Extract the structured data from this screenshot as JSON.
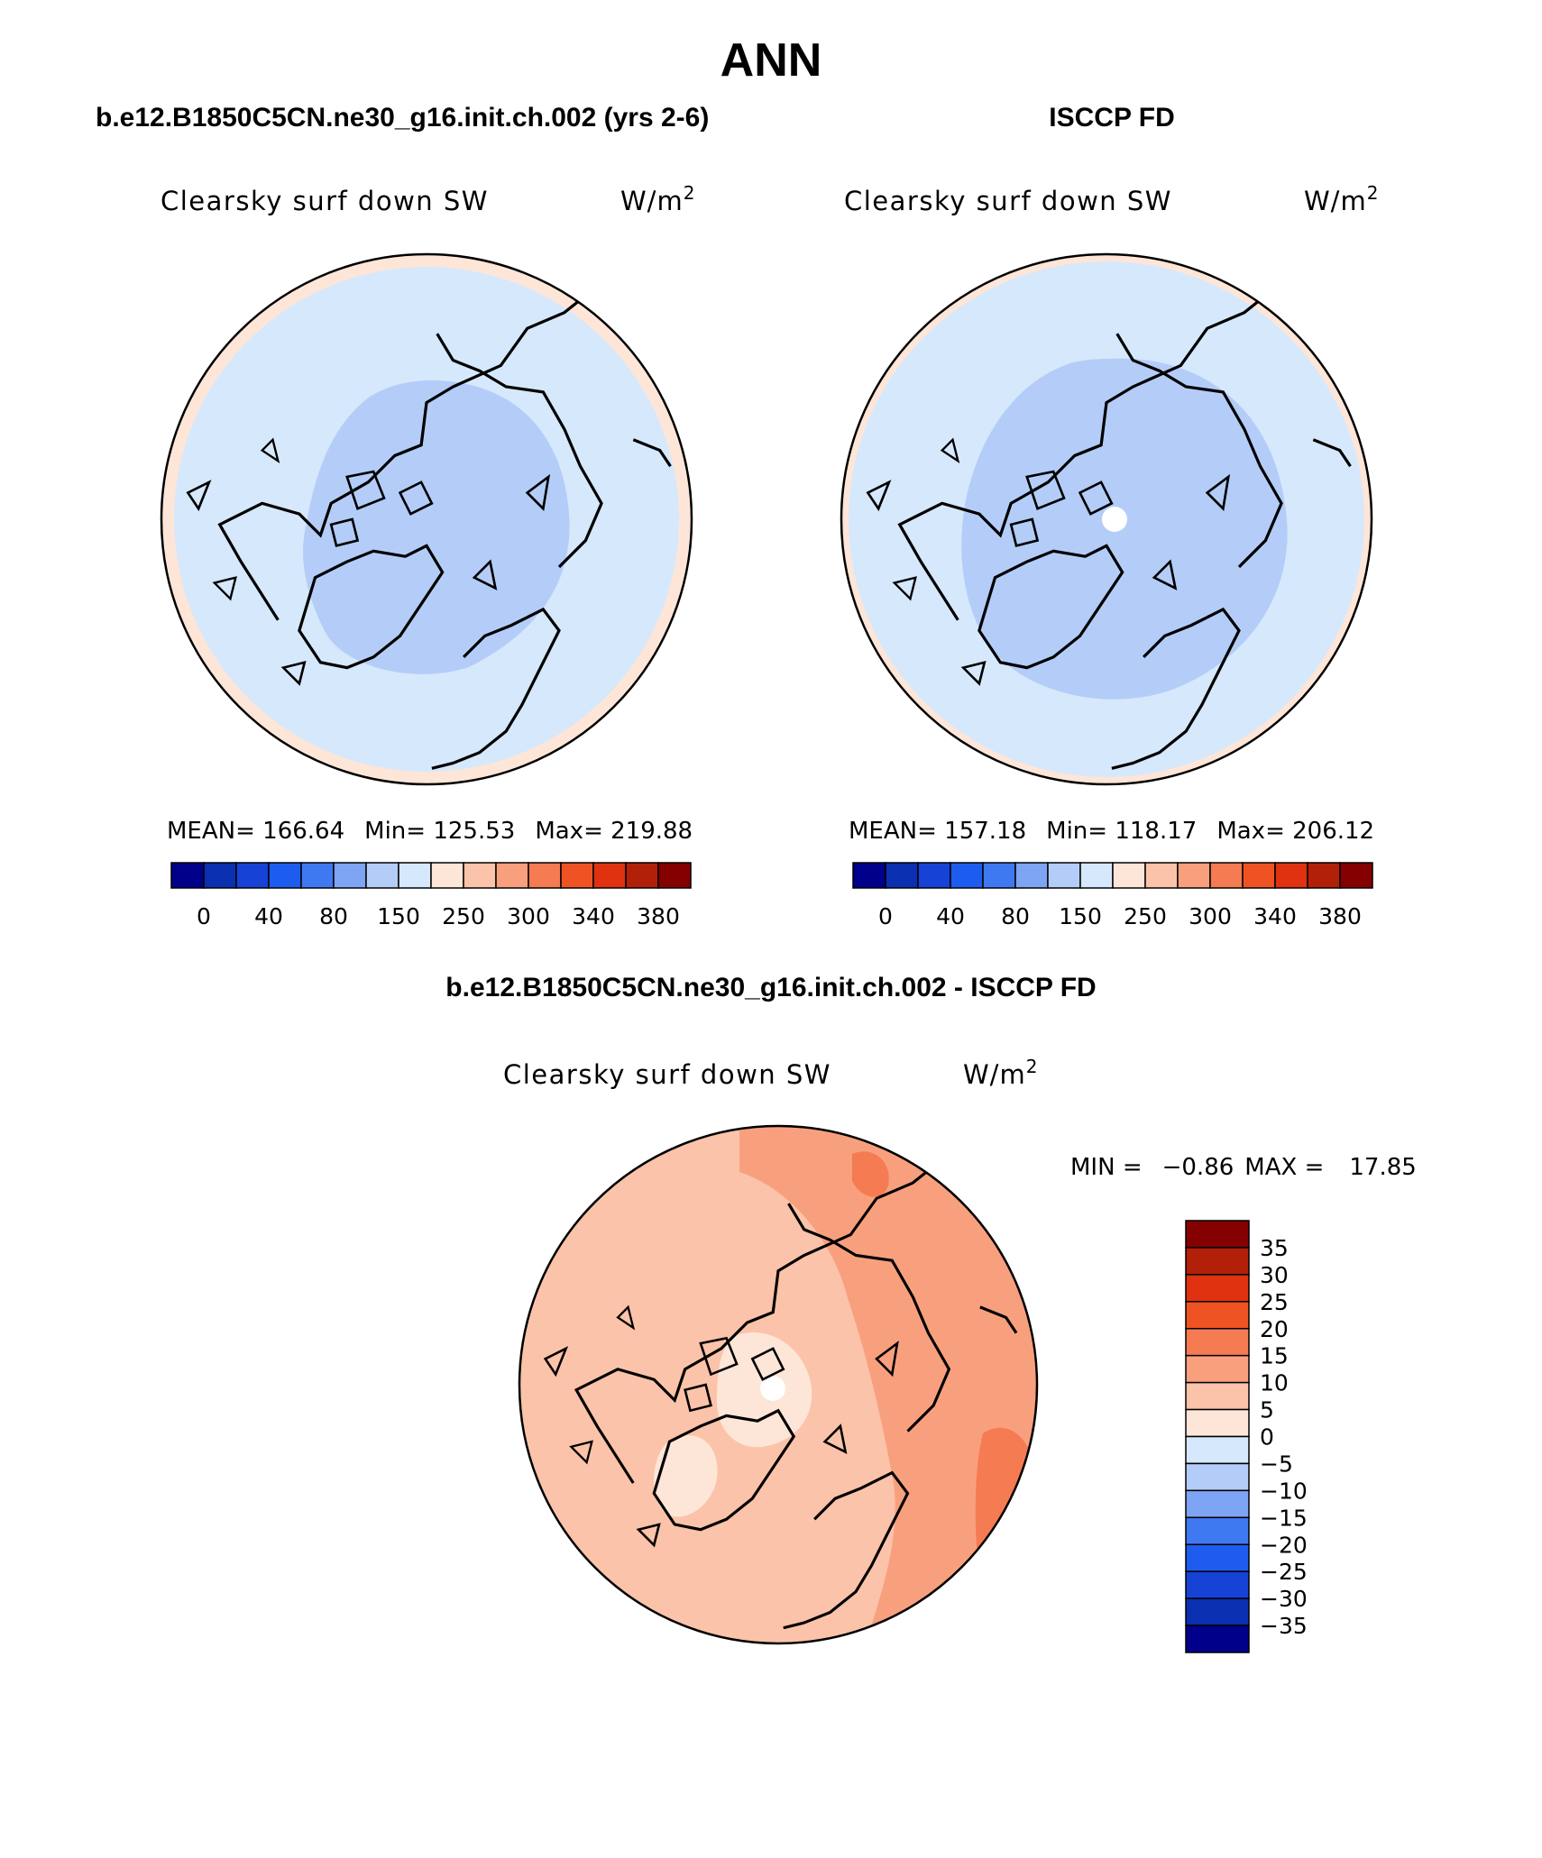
{
  "page": {
    "title": "ANN"
  },
  "panels": [
    {
      "id": "model",
      "header": "b.e12.B1850C5CN.ne30_g16.init.ch.002 (yrs 2-6)",
      "variable": "Clearsky surf down SW",
      "units_base": "W/m",
      "units_exp": "2",
      "stats": {
        "mean_label": "MEAN=",
        "mean": "166.64",
        "min_label": "Min=",
        "min": "125.53",
        "max_label": "Max=",
        "max": "219.88"
      },
      "colors": {
        "outer": "#fde6d8",
        "mid": "#d6e8fb",
        "inner": "#b4cdf8"
      },
      "inner_scale": 1.0,
      "pole_hole": false
    },
    {
      "id": "obs",
      "header": "ISCCP FD",
      "variable": "Clearsky surf down SW",
      "units_base": "W/m",
      "units_exp": "2",
      "stats": {
        "mean_label": "MEAN=",
        "mean": "157.18",
        "min_label": "Min=",
        "min": "118.17",
        "max_label": "Max=",
        "max": "206.12"
      },
      "colors": {
        "outer": "#fde6d8",
        "mid": "#d6e8fb",
        "inner": "#b4cdf8"
      },
      "inner_scale": 1.25,
      "pole_hole": true
    }
  ],
  "colorbar_abs": {
    "colors": [
      "#00008b",
      "#0a2fb0",
      "#1643d6",
      "#1e5cf0",
      "#3f79f2",
      "#7ea5f3",
      "#b4cdf8",
      "#d6e8fb",
      "#fde6d8",
      "#fbc3a9",
      "#f8a07e",
      "#f57b52",
      "#f05323",
      "#e03210",
      "#b3200a",
      "#850000"
    ],
    "labels": [
      "0",
      "40",
      "80",
      "150",
      "250",
      "300",
      "340",
      "380"
    ]
  },
  "diff": {
    "header": "b.e12.B1850C5CN.ne30_g16.init.ch.002 - ISCCP FD",
    "variable": "Clearsky surf down SW",
    "units_base": "W/m",
    "units_exp": "2",
    "min_label": "MIN =",
    "min": "−0.86",
    "max_label": "MAX =",
    "max": "17.85",
    "colorbar": {
      "colors_top_to_bottom": [
        "#850000",
        "#b3200a",
        "#e03210",
        "#f05323",
        "#f57b52",
        "#f8a07e",
        "#fbc3a9",
        "#fde6d8",
        "#d6e8fb",
        "#b4cdf8",
        "#7ea5f3",
        "#3f79f2",
        "#1e5cf0",
        "#1643d6",
        "#0a2fb0",
        "#00008b"
      ],
      "labels_top_to_bottom": [
        "35",
        "30",
        "25",
        "20",
        "15",
        "10",
        "5",
        "0",
        "−5",
        "−10",
        "−15",
        "−20",
        "−25",
        "−30",
        "−35"
      ]
    },
    "colors": {
      "base": "#fbc3a9",
      "warm": "#f8a07e",
      "hot": "#f57b52",
      "cool": "#fde6d8"
    }
  }
}
